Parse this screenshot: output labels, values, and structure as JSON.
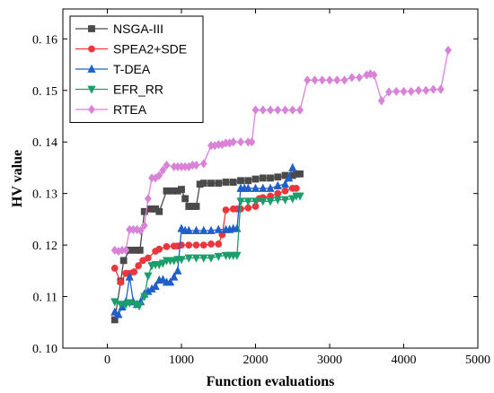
{
  "chart_data": {
    "type": "line",
    "xlabel": "Function evaluations",
    "ylabel": "HV value",
    "xlim": [
      -600,
      5000
    ],
    "ylim": [
      0.1,
      0.1658
    ],
    "xticks": [
      0,
      1000,
      2000,
      3000,
      4000,
      5000
    ],
    "yticks": [
      0.1,
      0.11,
      0.12,
      0.13,
      0.14,
      0.15,
      0.16
    ],
    "xtick_labels": [
      "0",
      "1000",
      "2000",
      "3000",
      "4000",
      "5000"
    ],
    "ytick_labels": [
      "0. 10",
      "0. 11",
      "0. 12",
      "0. 13",
      "0. 14",
      "0. 15",
      "0. 16"
    ],
    "legend_position": "top-left",
    "series": [
      {
        "name": "NSGA-III",
        "color": "#4a4a4a",
        "marker": "square",
        "x": [
          100,
          180,
          220,
          300,
          380,
          440,
          500,
          580,
          650,
          700,
          800,
          880,
          950,
          1000,
          1050,
          1100,
          1150,
          1200,
          1250,
          1300,
          1400,
          1500,
          1600,
          1700,
          1800,
          1900,
          2000,
          2100,
          2200,
          2300,
          2400,
          2500,
          2550,
          2600
        ],
        "y": [
          0.1055,
          0.113,
          0.117,
          0.119,
          0.119,
          0.119,
          0.1265,
          0.127,
          0.127,
          0.1265,
          0.1305,
          0.1305,
          0.1305,
          0.1308,
          0.129,
          0.1275,
          0.1275,
          0.1275,
          0.1318,
          0.132,
          0.132,
          0.132,
          0.1322,
          0.1322,
          0.1325,
          0.1325,
          0.1328,
          0.133,
          0.133,
          0.1332,
          0.1335,
          0.1335,
          0.1338,
          0.1338
        ]
      },
      {
        "name": "SPEA2+SDE",
        "color": "#e8383d",
        "marker": "circle",
        "x": [
          100,
          180,
          250,
          300,
          360,
          420,
          480,
          550,
          650,
          700,
          800,
          900,
          950,
          1000,
          1100,
          1200,
          1300,
          1400,
          1500,
          1550,
          1600,
          1700,
          1750,
          1800,
          1900,
          2000,
          2050,
          2100,
          2200,
          2300,
          2400,
          2500,
          2550
        ],
        "y": [
          0.1155,
          0.1128,
          0.1145,
          0.1145,
          0.1148,
          0.116,
          0.117,
          0.1175,
          0.1188,
          0.1192,
          0.1197,
          0.1198,
          0.1198,
          0.12,
          0.12,
          0.12,
          0.12,
          0.1202,
          0.1202,
          0.122,
          0.1268,
          0.127,
          0.127,
          0.127,
          0.1272,
          0.1275,
          0.129,
          0.1292,
          0.1295,
          0.13,
          0.1305,
          0.131,
          0.131
        ]
      },
      {
        "name": "T-DEA",
        "color": "#1f5fc9",
        "marker": "triangle-up",
        "x": [
          100,
          150,
          200,
          250,
          300,
          350,
          400,
          450,
          500,
          550,
          600,
          650,
          700,
          750,
          800,
          850,
          900,
          950,
          1000,
          1050,
          1100,
          1200,
          1300,
          1400,
          1500,
          1600,
          1650,
          1700,
          1750,
          1800,
          1850,
          1900,
          2000,
          2100,
          2200,
          2300,
          2400,
          2450,
          2500
        ],
        "y": [
          0.107,
          0.1065,
          0.108,
          0.109,
          0.1138,
          0.109,
          0.1085,
          0.109,
          0.1105,
          0.111,
          0.1115,
          0.112,
          0.1132,
          0.1133,
          0.1128,
          0.1128,
          0.1138,
          0.115,
          0.1232,
          0.1228,
          0.1228,
          0.1228,
          0.1228,
          0.1228,
          0.123,
          0.123,
          0.123,
          0.1232,
          0.1232,
          0.131,
          0.131,
          0.131,
          0.131,
          0.131,
          0.131,
          0.1315,
          0.1318,
          0.133,
          0.135
        ]
      },
      {
        "name": "EFR_RR",
        "color": "#1b9e6b",
        "marker": "triangle-down",
        "x": [
          100,
          180,
          250,
          300,
          380,
          430,
          500,
          550,
          600,
          650,
          700,
          750,
          800,
          850,
          900,
          950,
          1000,
          1100,
          1200,
          1300,
          1400,
          1500,
          1600,
          1650,
          1700,
          1750,
          1800,
          1900,
          2000,
          2100,
          2200,
          2300,
          2400,
          2500,
          2550,
          2600
        ],
        "y": [
          0.109,
          0.1085,
          0.1085,
          0.1088,
          0.1085,
          0.1082,
          0.11,
          0.114,
          0.116,
          0.1162,
          0.1162,
          0.1165,
          0.117,
          0.117,
          0.117,
          0.1172,
          0.1172,
          0.1175,
          0.1175,
          0.1175,
          0.1175,
          0.1178,
          0.118,
          0.118,
          0.118,
          0.118,
          0.1285,
          0.1285,
          0.1285,
          0.1285,
          0.1285,
          0.1288,
          0.1288,
          0.129,
          0.1295,
          0.1295
        ]
      },
      {
        "name": "RTEA",
        "color": "#d883d8",
        "marker": "diamond",
        "x": [
          100,
          150,
          200,
          250,
          300,
          350,
          400,
          450,
          500,
          550,
          600,
          650,
          700,
          750,
          800,
          900,
          950,
          1000,
          1050,
          1100,
          1150,
          1200,
          1300,
          1400,
          1450,
          1500,
          1550,
          1600,
          1650,
          1700,
          1800,
          1900,
          1950,
          2000,
          2100,
          2200,
          2300,
          2400,
          2500,
          2600,
          2700,
          2800,
          2900,
          3000,
          3100,
          3200,
          3300,
          3400,
          3500,
          3550,
          3600,
          3700,
          3800,
          3900,
          4000,
          4100,
          4200,
          4300,
          4400,
          4500,
          4600
        ],
        "y": [
          0.119,
          0.1188,
          0.119,
          0.119,
          0.123,
          0.123,
          0.123,
          0.1228,
          0.1238,
          0.129,
          0.133,
          0.133,
          0.1335,
          0.1345,
          0.1355,
          0.1352,
          0.1352,
          0.1352,
          0.1352,
          0.1352,
          0.1355,
          0.1355,
          0.1358,
          0.1393,
          0.1393,
          0.1395,
          0.1395,
          0.1398,
          0.1398,
          0.14,
          0.14,
          0.14,
          0.14,
          0.1462,
          0.1462,
          0.1462,
          0.1462,
          0.1462,
          0.1462,
          0.1462,
          0.152,
          0.152,
          0.152,
          0.152,
          0.152,
          0.152,
          0.1525,
          0.1525,
          0.153,
          0.1532,
          0.153,
          0.148,
          0.1497,
          0.1498,
          0.1498,
          0.1498,
          0.15,
          0.15,
          0.1502,
          0.1502,
          0.1578
        ]
      }
    ]
  }
}
